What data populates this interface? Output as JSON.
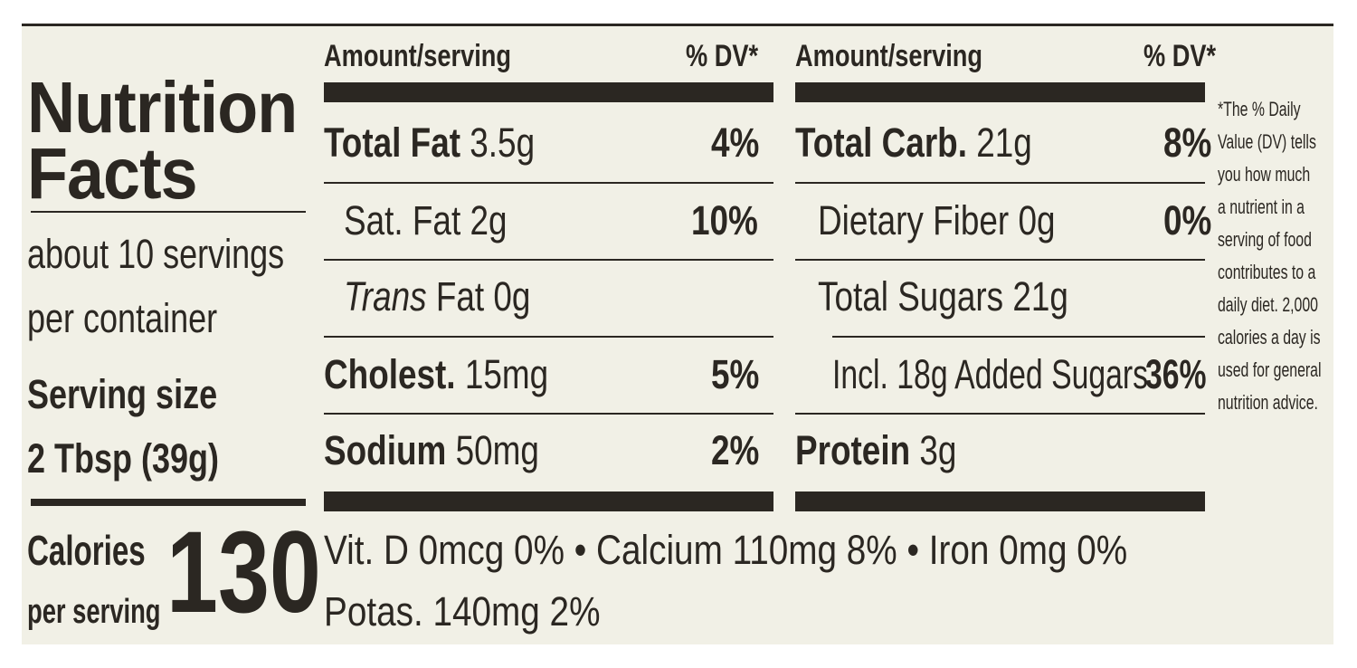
{
  "left": {
    "title_line1": "Nutrition",
    "title_line2": "Facts",
    "servings_line1": "about 10 servings",
    "servings_line2": "per container",
    "serving_size_label": "Serving size",
    "serving_size_value": "2 Tbsp (39g)",
    "calories_label": "Calories",
    "calories_sublabel": "per serving",
    "calories_value": "130"
  },
  "headers": {
    "amount": "Amount/serving",
    "dv": "% DV*"
  },
  "left_rows": [
    {
      "name": "Total Fat",
      "amount": "3.5g",
      "dv": "4%"
    },
    {
      "name": "Sat. Fat 2g",
      "dv": "10%"
    },
    {
      "name_italic": "Trans",
      "name_rest": "Fat 0g"
    },
    {
      "name": "Cholest.",
      "amount": "15mg",
      "dv": "5%"
    },
    {
      "name": "Sodium",
      "amount": "50mg",
      "dv": "2%"
    }
  ],
  "right_rows": [
    {
      "name": "Total Carb.",
      "amount": "21g",
      "dv": "8%"
    },
    {
      "name": "Dietary Fiber 0g",
      "dv": "0%"
    },
    {
      "name": "Total Sugars 21g"
    },
    {
      "name": "Incl. 18g Added Sugars",
      "dv": "36%"
    },
    {
      "name": "Protein",
      "amount": "3g"
    }
  ],
  "vitamins_line1": "Vit. D 0mcg 0% • Calcium 110mg 8% • Iron 0mg 0%",
  "vitamins_line2": "Potas. 140mg 2%",
  "footnote": [
    "*The % Daily",
    "Value (DV) tells",
    "you how much",
    "a nutrient in a",
    "serving of food",
    "contributes to a",
    "daily diet. 2,000",
    "calories a day is",
    "used for general",
    "nutrition advice."
  ]
}
